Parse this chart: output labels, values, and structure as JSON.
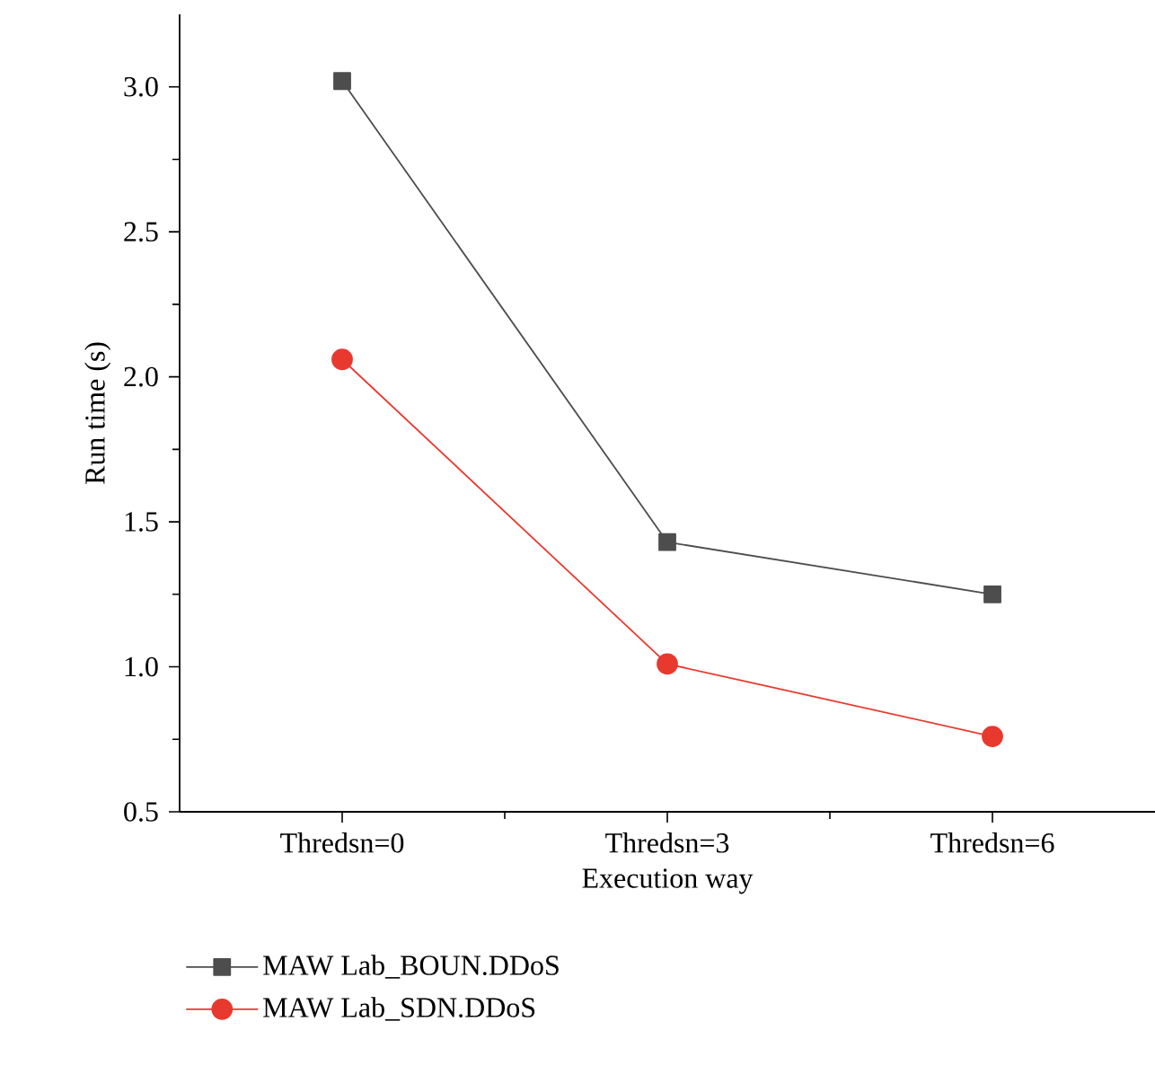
{
  "chart_data": {
    "type": "line",
    "xlabel": "Execution way",
    "ylabel": "Run time (s)",
    "categories": [
      "Thredsn=0",
      "Thredsn=3",
      "Thredsn=6"
    ],
    "series": [
      {
        "name": "MAW Lab_BOUN.DDoS",
        "color": "#4d4d4d",
        "marker": "square",
        "values": [
          3.02,
          1.43,
          1.25
        ]
      },
      {
        "name": "MAW Lab_SDN.DDoS",
        "color": "#e8392f",
        "marker": "circle",
        "values": [
          2.06,
          1.01,
          0.76
        ]
      }
    ],
    "ylim": [
      0.5,
      3.25
    ],
    "yticks": [
      0.5,
      {
        "value": 1,
        "label": "1.0"
      },
      1.5,
      {
        "value": 2,
        "label": "2.0"
      },
      2.5,
      {
        "value": 3,
        "label": "3.0"
      }
    ],
    "legend": "bottom left",
    "grid": false
  }
}
